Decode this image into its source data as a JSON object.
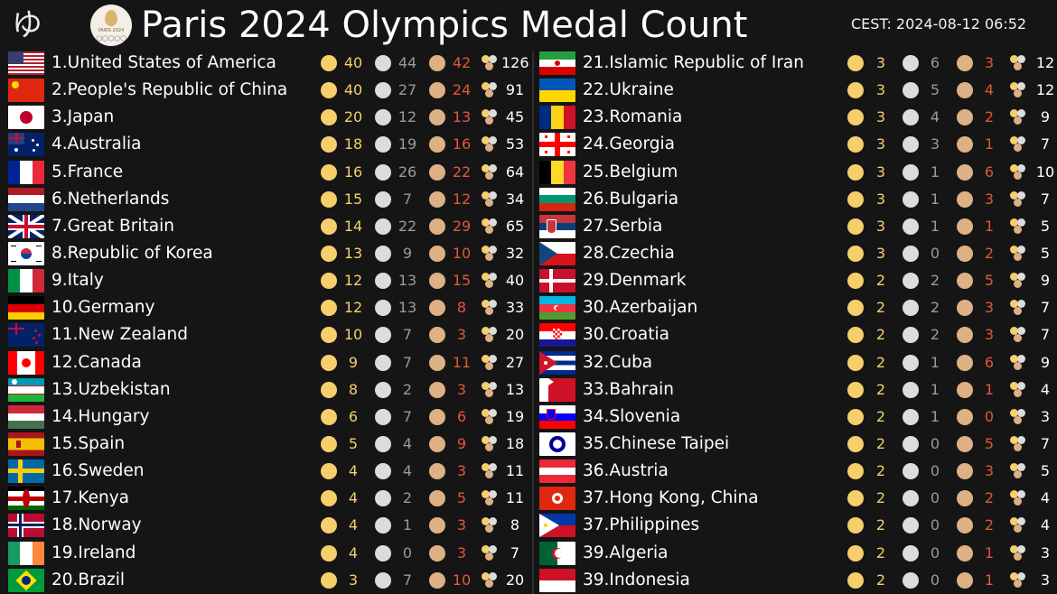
{
  "header": {
    "logo_char": "ゆ",
    "emblem_text": "PARIS 2024",
    "title": "Paris 2024 Olympics Medal Count",
    "timestamp": "CEST: 2024-08-12 06:52"
  },
  "countries": [
    {
      "label": "1.United States of America",
      "gold": "40",
      "silver": "44",
      "bronze": "42",
      "total": "126",
      "flag": "usa"
    },
    {
      "label": "2.People's Republic of China",
      "gold": "40",
      "silver": "27",
      "bronze": "24",
      "total": "91",
      "flag": "chn"
    },
    {
      "label": "3.Japan",
      "gold": "20",
      "silver": "12",
      "bronze": "13",
      "total": "45",
      "flag": "jpn"
    },
    {
      "label": "4.Australia",
      "gold": "18",
      "silver": "19",
      "bronze": "16",
      "total": "53",
      "flag": "aus"
    },
    {
      "label": "5.France",
      "gold": "16",
      "silver": "26",
      "bronze": "22",
      "total": "64",
      "flag": "fra"
    },
    {
      "label": "6.Netherlands",
      "gold": "15",
      "silver": "7",
      "bronze": "12",
      "total": "34",
      "flag": "ned"
    },
    {
      "label": "7.Great Britain",
      "gold": "14",
      "silver": "22",
      "bronze": "29",
      "total": "65",
      "flag": "gbr"
    },
    {
      "label": "8.Republic of Korea",
      "gold": "13",
      "silver": "9",
      "bronze": "10",
      "total": "32",
      "flag": "kor"
    },
    {
      "label": "9.Italy",
      "gold": "12",
      "silver": "13",
      "bronze": "15",
      "total": "40",
      "flag": "ita"
    },
    {
      "label": "10.Germany",
      "gold": "12",
      "silver": "13",
      "bronze": "8",
      "total": "33",
      "flag": "ger"
    },
    {
      "label": "11.New Zealand",
      "gold": "10",
      "silver": "7",
      "bronze": "3",
      "total": "20",
      "flag": "nzl"
    },
    {
      "label": "12.Canada",
      "gold": "9",
      "silver": "7",
      "bronze": "11",
      "total": "27",
      "flag": "can"
    },
    {
      "label": "13.Uzbekistan",
      "gold": "8",
      "silver": "2",
      "bronze": "3",
      "total": "13",
      "flag": "uzb"
    },
    {
      "label": "14.Hungary",
      "gold": "6",
      "silver": "7",
      "bronze": "6",
      "total": "19",
      "flag": "hun"
    },
    {
      "label": "15.Spain",
      "gold": "5",
      "silver": "4",
      "bronze": "9",
      "total": "18",
      "flag": "esp"
    },
    {
      "label": "16.Sweden",
      "gold": "4",
      "silver": "4",
      "bronze": "3",
      "total": "11",
      "flag": "swe"
    },
    {
      "label": "17.Kenya",
      "gold": "4",
      "silver": "2",
      "bronze": "5",
      "total": "11",
      "flag": "ken"
    },
    {
      "label": "18.Norway",
      "gold": "4",
      "silver": "1",
      "bronze": "3",
      "total": "8",
      "flag": "nor"
    },
    {
      "label": "19.Ireland",
      "gold": "4",
      "silver": "0",
      "bronze": "3",
      "total": "7",
      "flag": "irl"
    },
    {
      "label": "20.Brazil",
      "gold": "3",
      "silver": "7",
      "bronze": "10",
      "total": "20",
      "flag": "bra"
    },
    {
      "label": "21.Islamic Republic of Iran",
      "gold": "3",
      "silver": "6",
      "bronze": "3",
      "total": "12",
      "flag": "iri"
    },
    {
      "label": "22.Ukraine",
      "gold": "3",
      "silver": "5",
      "bronze": "4",
      "total": "12",
      "flag": "ukr"
    },
    {
      "label": "23.Romania",
      "gold": "3",
      "silver": "4",
      "bronze": "2",
      "total": "9",
      "flag": "rou"
    },
    {
      "label": "24.Georgia",
      "gold": "3",
      "silver": "3",
      "bronze": "1",
      "total": "7",
      "flag": "geo"
    },
    {
      "label": "25.Belgium",
      "gold": "3",
      "silver": "1",
      "bronze": "6",
      "total": "10",
      "flag": "bel"
    },
    {
      "label": "26.Bulgaria",
      "gold": "3",
      "silver": "1",
      "bronze": "3",
      "total": "7",
      "flag": "bul"
    },
    {
      "label": "27.Serbia",
      "gold": "3",
      "silver": "1",
      "bronze": "1",
      "total": "5",
      "flag": "srb"
    },
    {
      "label": "28.Czechia",
      "gold": "3",
      "silver": "0",
      "bronze": "2",
      "total": "5",
      "flag": "cze"
    },
    {
      "label": "29.Denmark",
      "gold": "2",
      "silver": "2",
      "bronze": "5",
      "total": "9",
      "flag": "den"
    },
    {
      "label": "30.Azerbaijan",
      "gold": "2",
      "silver": "2",
      "bronze": "3",
      "total": "7",
      "flag": "aze"
    },
    {
      "label": "30.Croatia",
      "gold": "2",
      "silver": "2",
      "bronze": "3",
      "total": "7",
      "flag": "cro"
    },
    {
      "label": "32.Cuba",
      "gold": "2",
      "silver": "1",
      "bronze": "6",
      "total": "9",
      "flag": "cub"
    },
    {
      "label": "33.Bahrain",
      "gold": "2",
      "silver": "1",
      "bronze": "1",
      "total": "4",
      "flag": "brn"
    },
    {
      "label": "34.Slovenia",
      "gold": "2",
      "silver": "1",
      "bronze": "0",
      "total": "3",
      "flag": "slo"
    },
    {
      "label": "35.Chinese Taipei",
      "gold": "2",
      "silver": "0",
      "bronze": "5",
      "total": "7",
      "flag": "tpe"
    },
    {
      "label": "36.Austria",
      "gold": "2",
      "silver": "0",
      "bronze": "3",
      "total": "5",
      "flag": "aut"
    },
    {
      "label": "37.Hong Kong, China",
      "gold": "2",
      "silver": "0",
      "bronze": "2",
      "total": "4",
      "flag": "hkg"
    },
    {
      "label": "37.Philippines",
      "gold": "2",
      "silver": "0",
      "bronze": "2",
      "total": "4",
      "flag": "phi"
    },
    {
      "label": "39.Algeria",
      "gold": "2",
      "silver": "0",
      "bronze": "1",
      "total": "3",
      "flag": "alg"
    },
    {
      "label": "39.Indonesia",
      "gold": "2",
      "silver": "0",
      "bronze": "1",
      "total": "3",
      "flag": "ina"
    }
  ],
  "colors": {
    "background": "#151515",
    "gold": "#f6cf6c",
    "silver_text": "#9a9a9a",
    "bronze_text": "#e2573b"
  }
}
